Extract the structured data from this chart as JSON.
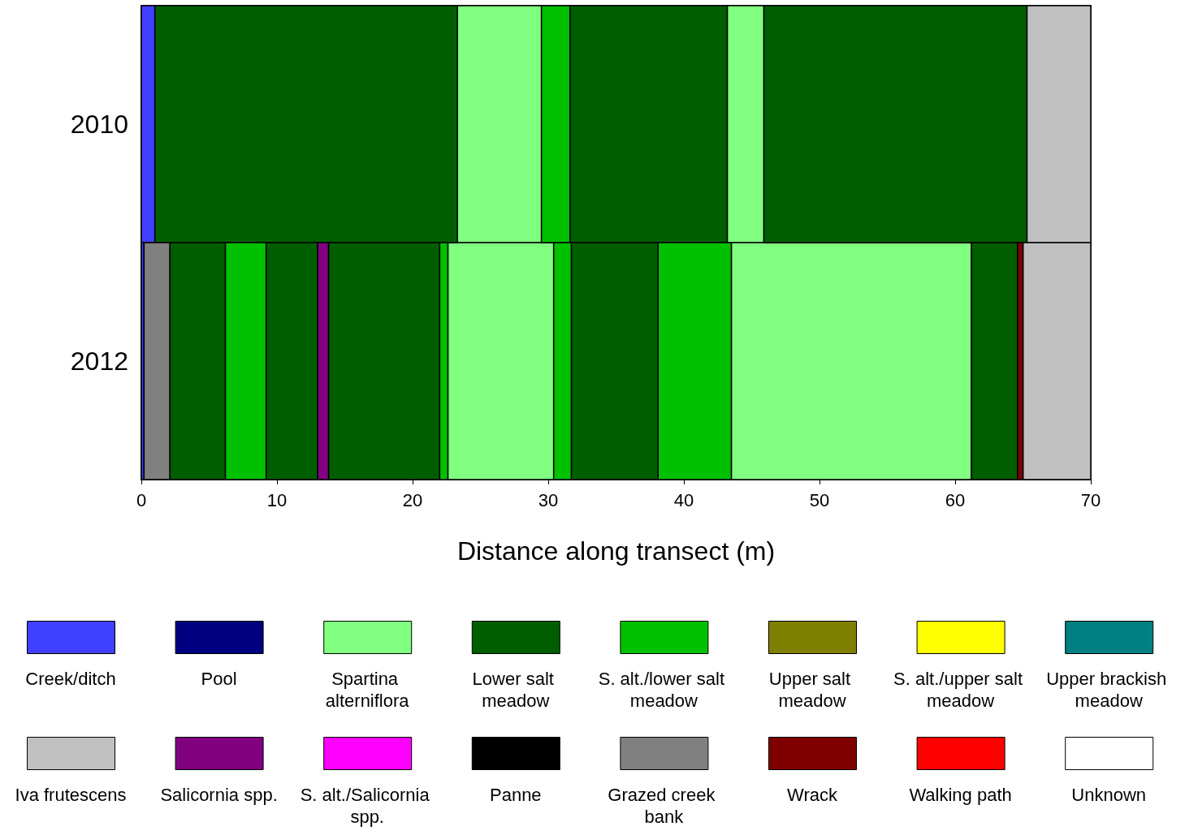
{
  "chart_data": {
    "type": "bar",
    "orientation": "horizontal",
    "xlabel": "Distance along transect (m)",
    "categories": [
      "2010",
      "2012"
    ],
    "xlim": [
      0,
      70
    ],
    "xticks": [
      0,
      10,
      20,
      30,
      40,
      50,
      60,
      70
    ],
    "grid": false,
    "legend": "bottom",
    "series": [
      {
        "name": "Creek/ditch",
        "color": "#4040ff",
        "base": [
          0,
          0
        ],
        "values": [
          1.0,
          0.2
        ]
      },
      {
        "name": "Pool",
        "color": "#000080",
        "base": [
          null,
          null
        ],
        "values": [
          null,
          null
        ]
      },
      {
        "name": "Spartina alterniflora",
        "color": "#80ff80",
        "base": [
          23.3,
          22.6
        ],
        "values": [
          6.2,
          7.8
        ]
      },
      {
        "color": "#80ff80",
        "base": [
          43.2,
          43.5
        ],
        "values": [
          2.7,
          17.7
        ]
      },
      {
        "name": "Lower salt meadow",
        "color": "#005e00",
        "base": [
          1.0,
          2.1
        ],
        "values": [
          22.3,
          4.1
        ]
      },
      {
        "color": "#005e00",
        "base": [
          31.6,
          9.2
        ],
        "values": [
          11.6,
          3.8
        ]
      },
      {
        "color": "#005e00",
        "base": [
          45.9,
          13.8
        ],
        "values": [
          19.4,
          8.2
        ]
      },
      {
        "color": "#005e00",
        "base": [
          null,
          31.7
        ],
        "values": [
          null,
          6.4
        ]
      },
      {
        "color": "#005e00",
        "base": [
          null,
          61.2
        ],
        "values": [
          null,
          3.4
        ]
      },
      {
        "name": "S. alt./lower salt meadow",
        "color": "#00c000",
        "base": [
          29.5,
          6.2
        ],
        "values": [
          2.1,
          3.0
        ]
      },
      {
        "color": "#00c000",
        "base": [
          null,
          22.0
        ],
        "values": [
          null,
          0.6
        ]
      },
      {
        "color": "#00c000",
        "base": [
          null,
          30.4
        ],
        "values": [
          null,
          1.3
        ]
      },
      {
        "color": "#00c000",
        "base": [
          null,
          38.1
        ],
        "values": [
          null,
          5.4
        ]
      },
      {
        "name": "Upper salt meadow",
        "color": "#808000",
        "base": [
          null,
          null
        ],
        "values": [
          null,
          null
        ]
      },
      {
        "name": "S. alt./upper salt meadow",
        "color": "#ffff00",
        "base": [
          null,
          null
        ],
        "values": [
          null,
          null
        ]
      },
      {
        "name": "Upper brackish meadow",
        "color": "#008080",
        "base": [
          null,
          null
        ],
        "values": [
          null,
          null
        ]
      },
      {
        "name": "Iva frutescens",
        "color": "#c0c0c0",
        "base": [
          65.3,
          65.0
        ],
        "values": [
          4.7,
          5.0
        ]
      },
      {
        "name": "Salicornia spp.",
        "color": "#800080",
        "base": [
          null,
          13.0
        ],
        "values": [
          null,
          0.8
        ]
      },
      {
        "name": "S. alt./Salicornia spp.",
        "color": "#ff00ff",
        "base": [
          null,
          null
        ],
        "values": [
          null,
          null
        ]
      },
      {
        "name": "Panne",
        "color": "#000000",
        "base": [
          null,
          null
        ],
        "values": [
          null,
          null
        ]
      },
      {
        "name": "Grazed creek bank",
        "color": "#808080",
        "base": [
          null,
          0.2
        ],
        "values": [
          null,
          1.9
        ]
      },
      {
        "name": "Wrack",
        "color": "#800000",
        "base": [
          null,
          64.6
        ],
        "values": [
          null,
          0.4
        ]
      },
      {
        "name": "Walking path",
        "color": "#ff0000",
        "base": [
          null,
          null
        ],
        "values": [
          null,
          null
        ]
      },
      {
        "name": "Unknown",
        "color": "#ffffff",
        "base": [
          null,
          null
        ],
        "values": [
          null,
          null
        ]
      }
    ]
  }
}
